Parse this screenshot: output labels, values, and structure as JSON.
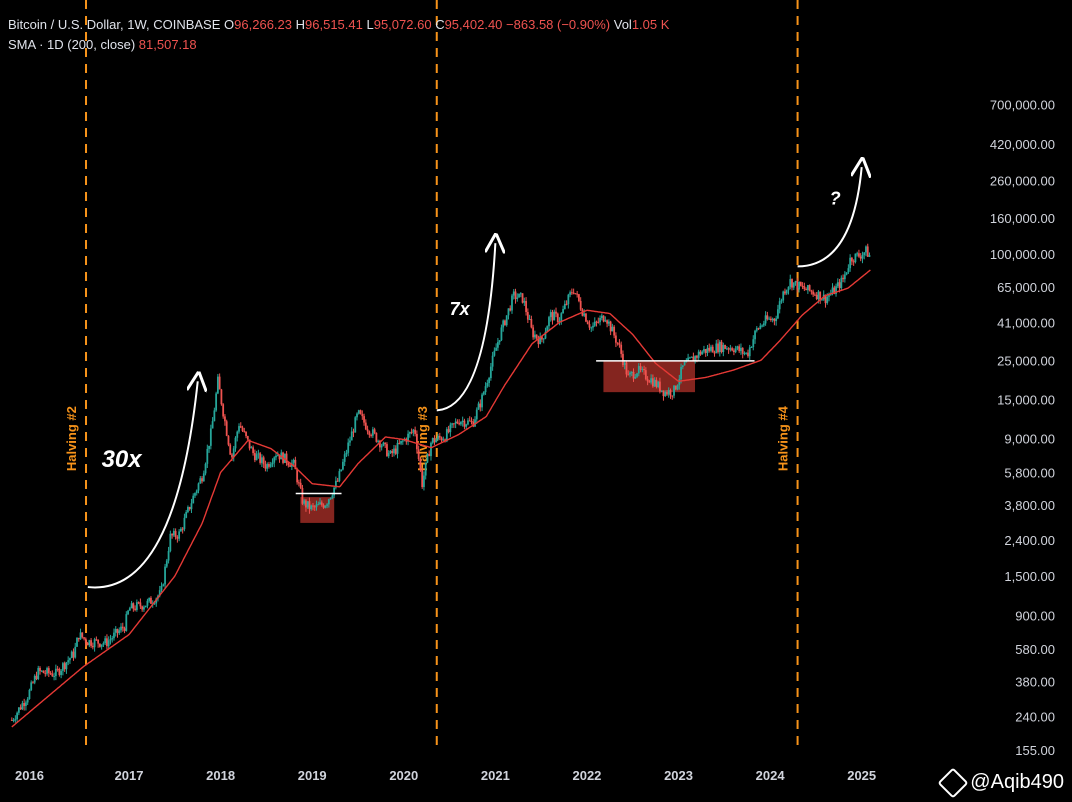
{
  "header": {
    "symbol": "Bitcoin / U.S. Dollar, 1W, COINBASE",
    "o_label": "O",
    "o_value": "96,266.23",
    "h_label": "H",
    "h_value": "96,515.41",
    "l_label": "L",
    "l_value": "95,072.60",
    "c_label": "C",
    "c_value": "95,402.40",
    "change": "−863.58 (−0.90%)",
    "vol_label": "Vol",
    "vol_value": "1.05 K",
    "indicator": "SMA · 1D (200, close)",
    "indicator_value": "81,507.18"
  },
  "watermark": "@Aqib490",
  "colors": {
    "background": "#000000",
    "up": "#26a69a",
    "down": "#ef5350",
    "sma": "#e53935",
    "halving_line": "#f7931a",
    "zone": "#b0322a",
    "axis_text": "#d1d4dc",
    "arrow": "#ffffff"
  },
  "chart_data": {
    "type": "candlestick",
    "y_scale": "log",
    "ylim": [
      140,
      1100000
    ],
    "y_ticks": [
      155,
      240,
      380,
      580,
      900,
      1500,
      2400,
      3800,
      5800,
      9000,
      15000,
      25000,
      41000,
      65000,
      100000,
      160000,
      260000,
      420000,
      700000
    ],
    "y_tick_labels": [
      "155.00",
      "240.00",
      "380.00",
      "580.00",
      "900.00",
      "1,500.00",
      "2,400.00",
      "3,800.00",
      "5,800.00",
      "9,000.00",
      "15,000.00",
      "25,000.00",
      "41,000.00",
      "65,000.00",
      "100,000.00",
      "160,000.00",
      "260,000.00",
      "420,000.00",
      "700,000.00"
    ],
    "x_range": [
      2015.7,
      2025.2
    ],
    "x_ticks": [
      2016,
      2017,
      2018,
      2019,
      2020,
      2021,
      2022,
      2023,
      2024,
      2025
    ],
    "x_tick_labels": [
      "2016",
      "2017",
      "2018",
      "2019",
      "2020",
      "2021",
      "2022",
      "2023",
      "2024",
      "2025"
    ],
    "price_path": [
      [
        2015.72,
        230
      ],
      [
        2015.9,
        320
      ],
      [
        2016.0,
        430
      ],
      [
        2016.2,
        420
      ],
      [
        2016.4,
        550
      ],
      [
        2016.45,
        700
      ],
      [
        2016.55,
        640
      ],
      [
        2016.75,
        630
      ],
      [
        2016.95,
        780
      ],
      [
        2017.0,
        980
      ],
      [
        2017.2,
        1050
      ],
      [
        2017.35,
        1200
      ],
      [
        2017.45,
        2500
      ],
      [
        2017.55,
        2600
      ],
      [
        2017.7,
        4200
      ],
      [
        2017.8,
        5600
      ],
      [
        2017.9,
        10000
      ],
      [
        2017.97,
        19000
      ],
      [
        2018.05,
        11000
      ],
      [
        2018.12,
        7000
      ],
      [
        2018.2,
        11000
      ],
      [
        2018.35,
        7500
      ],
      [
        2018.5,
        6300
      ],
      [
        2018.6,
        7500
      ],
      [
        2018.8,
        6400
      ],
      [
        2018.9,
        3900
      ],
      [
        2019.0,
        3600
      ],
      [
        2019.15,
        3900
      ],
      [
        2019.28,
        5200
      ],
      [
        2019.4,
        8500
      ],
      [
        2019.5,
        12500
      ],
      [
        2019.6,
        10500
      ],
      [
        2019.75,
        8500
      ],
      [
        2019.85,
        7200
      ],
      [
        2020.0,
        8800
      ],
      [
        2020.12,
        10200
      ],
      [
        2020.2,
        5000
      ],
      [
        2020.3,
        8700
      ],
      [
        2020.45,
        9300
      ],
      [
        2020.6,
        11500
      ],
      [
        2020.75,
        11000
      ],
      [
        2020.85,
        15000
      ],
      [
        2020.95,
        23000
      ],
      [
        2021.05,
        35000
      ],
      [
        2021.2,
        58000
      ],
      [
        2021.3,
        56000
      ],
      [
        2021.4,
        36000
      ],
      [
        2021.5,
        32000
      ],
      [
        2021.6,
        45000
      ],
      [
        2021.7,
        43000
      ],
      [
        2021.85,
        64000
      ],
      [
        2021.95,
        48000
      ],
      [
        2022.05,
        38000
      ],
      [
        2022.2,
        45000
      ],
      [
        2022.35,
        30000
      ],
      [
        2022.45,
        20000
      ],
      [
        2022.55,
        22000
      ],
      [
        2022.7,
        19500
      ],
      [
        2022.85,
        16500
      ],
      [
        2022.95,
        16800
      ],
      [
        2023.05,
        23000
      ],
      [
        2023.25,
        28000
      ],
      [
        2023.45,
        30000
      ],
      [
        2023.6,
        29500
      ],
      [
        2023.75,
        27000
      ],
      [
        2023.85,
        37000
      ],
      [
        2023.95,
        42000
      ],
      [
        2024.05,
        43000
      ],
      [
        2024.15,
        62000
      ],
      [
        2024.22,
        70000
      ],
      [
        2024.35,
        64000
      ],
      [
        2024.5,
        60000
      ],
      [
        2024.6,
        56000
      ],
      [
        2024.7,
        62000
      ],
      [
        2024.8,
        72000
      ],
      [
        2024.88,
        95000
      ],
      [
        2024.97,
        98000
      ],
      [
        2025.05,
        104000
      ],
      [
        2025.1,
        95400
      ]
    ],
    "sma_path": [
      [
        2015.72,
        210
      ],
      [
        2016.5,
        460
      ],
      [
        2017.0,
        700
      ],
      [
        2017.5,
        1500
      ],
      [
        2017.8,
        3000
      ],
      [
        2018.0,
        5800
      ],
      [
        2018.3,
        8800
      ],
      [
        2018.55,
        7900
      ],
      [
        2018.8,
        6300
      ],
      [
        2019.0,
        5000
      ],
      [
        2019.3,
        4800
      ],
      [
        2019.5,
        6500
      ],
      [
        2019.8,
        9200
      ],
      [
        2020.0,
        8900
      ],
      [
        2020.3,
        8000
      ],
      [
        2020.6,
        9500
      ],
      [
        2020.9,
        12000
      ],
      [
        2021.1,
        18000
      ],
      [
        2021.4,
        31000
      ],
      [
        2021.7,
        41000
      ],
      [
        2022.0,
        48000
      ],
      [
        2022.25,
        46000
      ],
      [
        2022.5,
        35000
      ],
      [
        2022.75,
        24000
      ],
      [
        2023.0,
        19000
      ],
      [
        2023.3,
        20000
      ],
      [
        2023.6,
        22000
      ],
      [
        2023.9,
        25000
      ],
      [
        2024.1,
        32000
      ],
      [
        2024.35,
        45000
      ],
      [
        2024.6,
        58000
      ],
      [
        2024.85,
        64000
      ],
      [
        2025.1,
        81500
      ]
    ],
    "halvings": [
      {
        "label": "Halving #2",
        "x": 2016.53
      },
      {
        "label": "Halving #3",
        "x": 2020.36
      },
      {
        "label": "Halving #4",
        "x": 2024.3
      }
    ],
    "zones": [
      {
        "x0": 2018.87,
        "x1": 2019.24,
        "y_low": 3000,
        "y_high": 4200
      },
      {
        "x0": 2022.18,
        "x1": 2023.18,
        "y_low": 16500,
        "y_high": 24800
      }
    ],
    "support_lines": [
      {
        "x0": 2018.82,
        "x1": 2019.32,
        "y": 4400
      },
      {
        "x0": 2022.1,
        "x1": 2023.83,
        "y": 24800
      }
    ],
    "annotations": [
      {
        "text": "30x",
        "x": 2016.7,
        "y": 6200
      },
      {
        "text": "7x",
        "x": 2020.5,
        "y": 45000
      },
      {
        "text": "?",
        "x": 2024.65,
        "y": 190000
      }
    ],
    "arrows": [
      {
        "from": [
          2016.55,
          1300
        ],
        "ctrl": [
          2017.5,
          1150
        ],
        "to": [
          2017.75,
          19000
        ]
      },
      {
        "from": [
          2020.36,
          13000
        ],
        "ctrl": [
          2020.9,
          13500
        ],
        "to": [
          2021.0,
          115000
        ]
      },
      {
        "from": [
          2024.3,
          85000
        ],
        "ctrl": [
          2024.9,
          85000
        ],
        "to": [
          2025.0,
          310000
        ]
      }
    ]
  }
}
